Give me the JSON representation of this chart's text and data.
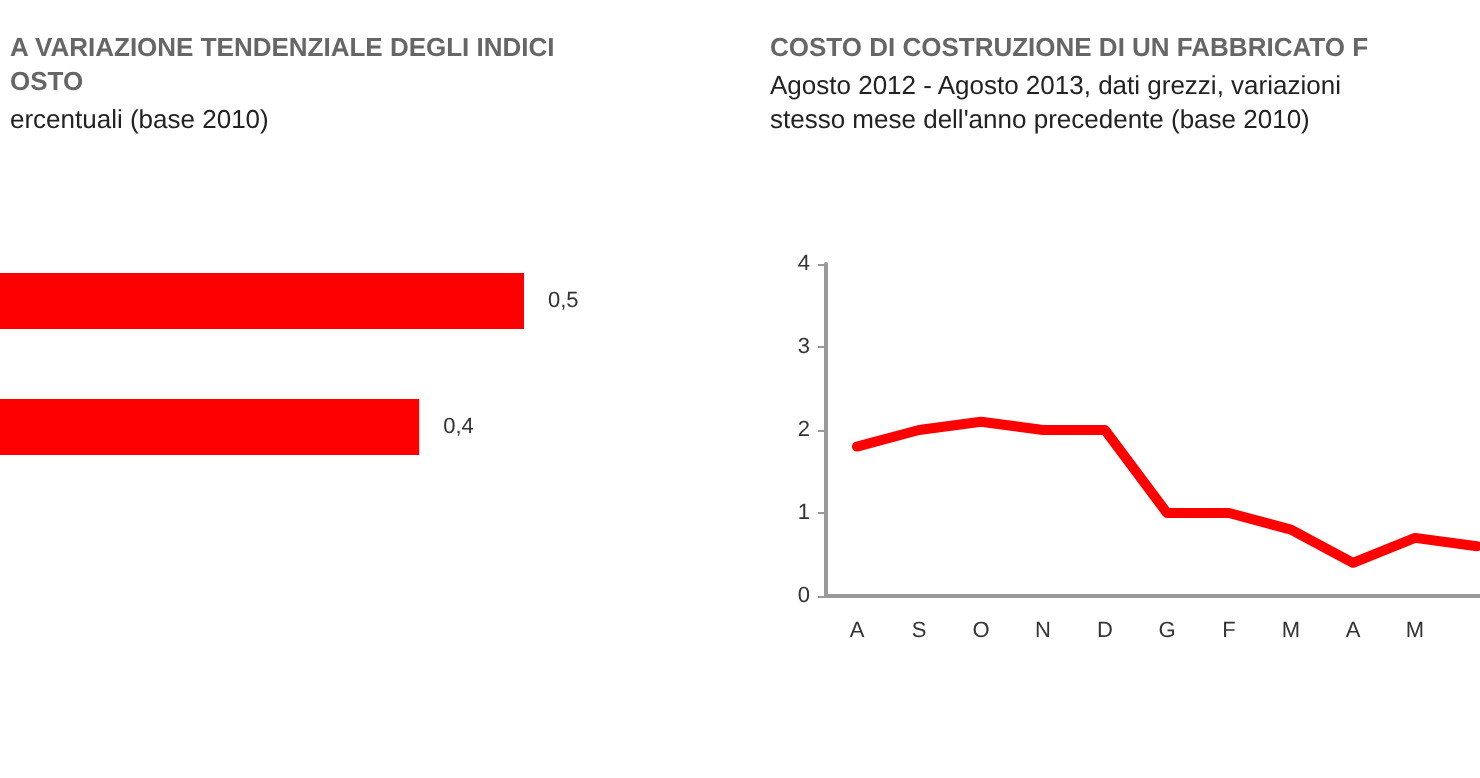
{
  "chart_data": [
    {
      "type": "bar",
      "orientation": "horizontal",
      "tick_labels": false,
      "title": "A VARIAZIONE TENDENZIALE DEGLI INDICI\nOSTO",
      "subtitle": "ercentuali (base 2010)",
      "categories": [
        null,
        null
      ],
      "values": [
        0.5,
        0.4
      ],
      "color": "#ff0000",
      "value_labels": [
        "0,5",
        "0,4"
      ],
      "grid": false
    },
    {
      "type": "line",
      "title": "COSTO DI COSTRUZIONE DI UN FABBRICATO F",
      "subtitle": "Agosto 2012 - Agosto 2013, dati grezzi, variazioni\nstesso mese dell'anno precedente (base 2010)",
      "categories": [
        "A",
        "S",
        "O",
        "N",
        "D",
        "G",
        "F",
        "M",
        "A",
        "M",
        null
      ],
      "values": [
        1.8,
        2.0,
        2.1,
        2.0,
        2.0,
        1.0,
        1.0,
        0.8,
        0.4,
        0.7,
        0.6
      ],
      "color": "#ff0000",
      "ylim": [
        0,
        4
      ],
      "yticks": [
        0,
        1,
        2,
        3,
        4
      ],
      "grid": false,
      "marker": "none",
      "line_style": "solid"
    }
  ]
}
